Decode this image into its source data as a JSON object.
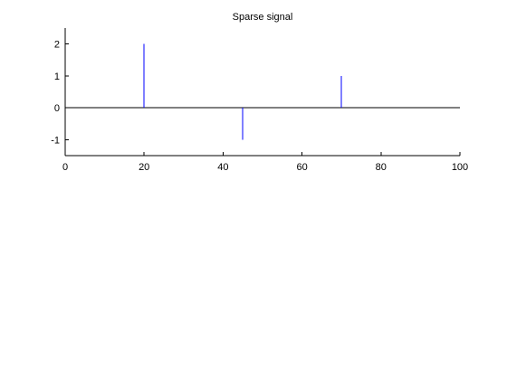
{
  "chart_data": {
    "type": "stem",
    "title": "Sparse signal",
    "xlabel": "",
    "ylabel": "",
    "xlim": [
      0,
      100
    ],
    "ylim": [
      -1.5,
      2.5
    ],
    "x_ticks": [
      0,
      20,
      40,
      60,
      80,
      100
    ],
    "y_ticks": [
      -1,
      0,
      1,
      2
    ],
    "grid": false,
    "baseline": 0,
    "series": [
      {
        "color": "#0000ff",
        "points": [
          {
            "x": 20,
            "y": 2
          },
          {
            "x": 45,
            "y": -1
          },
          {
            "x": 70,
            "y": 1
          }
        ]
      }
    ]
  }
}
